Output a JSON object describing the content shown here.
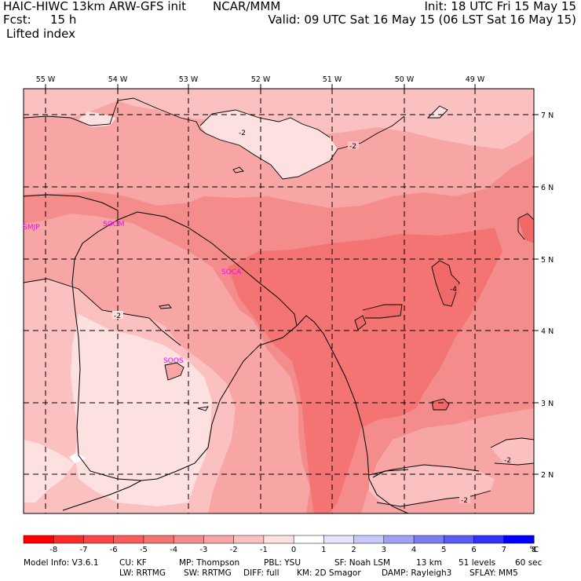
{
  "header": {
    "title": "HAIC-HIWC 13km ARW-GFS init",
    "org": "NCAR/MMM",
    "init": "Init: 18 UTC Fri 15 May 15",
    "fcst_label": "Fcst:",
    "fcst_value": "15 h",
    "valid": "Valid: 09 UTC Sat 16 May 15 (06 LST Sat 16 May 15)",
    "field": "Lifted index"
  },
  "map": {
    "lon_labels": [
      "55 W",
      "54 W",
      "53 W",
      "52 W",
      "51 W",
      "50 W",
      "49 W"
    ],
    "lat_labels": [
      "7 N",
      "6 N",
      "5 N",
      "4 N",
      "3 N",
      "2 N"
    ],
    "stations": [
      "SMJP",
      "SOGM",
      "SOCA",
      "SOOS"
    ],
    "contour_labels": [
      "-2",
      "-2",
      "-4",
      "-2",
      "-2",
      "-2"
    ]
  },
  "colorbar": {
    "ticks": [
      "-8",
      "-7",
      "-6",
      "-5",
      "-4",
      "-3",
      "-2",
      "-1",
      "0",
      "1",
      "2",
      "3",
      "4",
      "5",
      "6",
      "7",
      "8"
    ],
    "unit": "°C",
    "colors": [
      "#ff0000",
      "#ff2a2a",
      "#ff4545",
      "#fa5c5c",
      "#f47373",
      "#f58c8c",
      "#f7a5a5",
      "#fbc0c0",
      "#fde0e0",
      "#ffffff",
      "#e4e4ff",
      "#c8c8fa",
      "#a0a0f5",
      "#7c7cf0",
      "#5a5af5",
      "#3232fa",
      "#0000ff"
    ]
  },
  "model_info": {
    "line1": [
      "Model Info: V3.6.1",
      "CU: KF",
      "MP: Thompson",
      "PBL: YSU",
      "SF: Noah LSM",
      "13 km",
      "51 levels",
      "60 sec"
    ],
    "line2": [
      "LW: RRTMG",
      "SW: RRTMG",
      "DIFF: full",
      "KM: 2D Smagor",
      "DAMP: Rayleigh3",
      "SFLAY: MM5"
    ]
  }
}
